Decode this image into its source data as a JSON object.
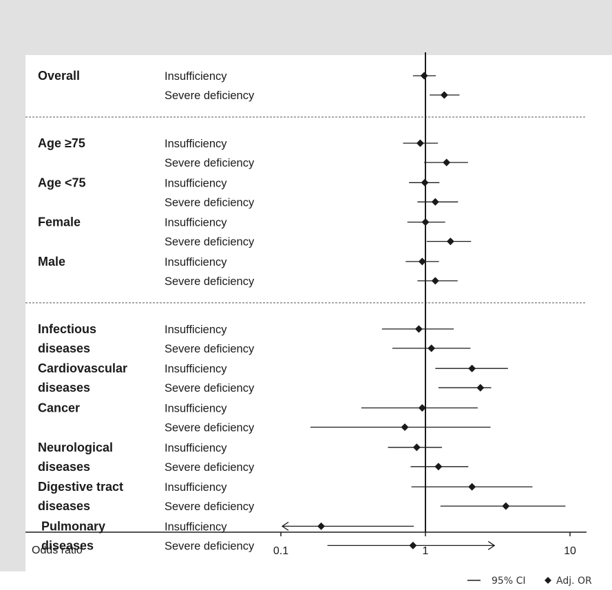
{
  "chart_data": {
    "type": "forest",
    "x_scale": "log",
    "xlim": [
      0.1,
      10
    ],
    "xlabel": "Odds ratio",
    "ticks": [
      {
        "value": 0.1,
        "label": "0.1"
      },
      {
        "value": 1,
        "label": "1"
      },
      {
        "value": 10,
        "label": "10"
      }
    ],
    "reference_line": 1,
    "legend": {
      "ci_label": "95% CI",
      "or_label": "Adj. OR",
      "placement": "bottom-right"
    },
    "groups": [
      {
        "label": "Overall",
        "section": 1,
        "rows": [
          {
            "level": "Insufficiency",
            "or": 0.98,
            "ci": [
              0.82,
              1.18
            ]
          },
          {
            "level": "Severe deficiency",
            "or": 1.35,
            "ci": [
              1.07,
              1.72
            ]
          }
        ]
      },
      {
        "label": "Age ≥75",
        "section": 2,
        "rows": [
          {
            "level": "Insufficiency",
            "or": 0.92,
            "ci": [
              0.7,
              1.22
            ]
          },
          {
            "level": "Severe deficiency",
            "or": 1.4,
            "ci": [
              0.98,
              1.97
            ]
          }
        ]
      },
      {
        "label": "Age <75",
        "section": 2,
        "rows": [
          {
            "level": "Insufficiency",
            "or": 0.99,
            "ci": [
              0.77,
              1.25
            ]
          },
          {
            "level": "Severe deficiency",
            "or": 1.17,
            "ci": [
              0.88,
              1.68
            ]
          }
        ]
      },
      {
        "label": "Female",
        "section": 2,
        "rows": [
          {
            "level": "Insufficiency",
            "or": 1.0,
            "ci": [
              0.75,
              1.37
            ]
          },
          {
            "level": "Severe deficiency",
            "or": 1.49,
            "ci": [
              1.02,
              2.07
            ]
          }
        ]
      },
      {
        "label": "Male",
        "section": 2,
        "rows": [
          {
            "level": "Insufficiency",
            "or": 0.95,
            "ci": [
              0.73,
              1.24
            ]
          },
          {
            "level": "Severe deficiency",
            "or": 1.17,
            "ci": [
              0.88,
              1.67
            ]
          }
        ]
      },
      {
        "label": "Infectious diseases",
        "label_lines": [
          "Infectious",
          "diseases"
        ],
        "section": 3,
        "rows": [
          {
            "level": "Insufficiency",
            "or": 0.9,
            "ci": [
              0.5,
              1.57
            ]
          },
          {
            "level": "Severe deficiency",
            "or": 1.1,
            "ci": [
              0.59,
              2.05
            ]
          }
        ]
      },
      {
        "label": "Cardiovascular diseases",
        "label_lines": [
          "Cardiovascular",
          "diseases"
        ],
        "section": 3,
        "rows": [
          {
            "level": "Insufficiency",
            "or": 2.1,
            "ci": [
              1.17,
              3.72
            ]
          },
          {
            "level": "Severe deficiency",
            "or": 2.4,
            "ci": [
              1.23,
              2.85
            ]
          }
        ]
      },
      {
        "label": "Cancer",
        "label_lines": [
          "Cancer"
        ],
        "section": 3,
        "rows": [
          {
            "level": "Insufficiency",
            "or": 0.95,
            "ci": [
              0.36,
              2.3
            ]
          },
          {
            "level": "Severe deficiency",
            "or": 0.72,
            "ci": [
              0.16,
              2.82
            ]
          }
        ]
      },
      {
        "label": "Neurological diseases",
        "label_lines": [
          "Neurological",
          "diseases"
        ],
        "section": 3,
        "rows": [
          {
            "level": "Insufficiency",
            "or": 0.87,
            "ci": [
              0.55,
              1.3
            ]
          },
          {
            "level": "Severe deficiency",
            "or": 1.23,
            "ci": [
              0.79,
              1.98
            ]
          }
        ]
      },
      {
        "label": "Digestive tract diseases",
        "label_lines": [
          "Digestive tract",
          "diseases"
        ],
        "section": 3,
        "rows": [
          {
            "level": "Insufficiency",
            "or": 2.1,
            "ci": [
              0.8,
              5.5
            ]
          },
          {
            "level": "Severe deficiency",
            "or": 3.6,
            "ci": [
              1.27,
              9.3
            ]
          }
        ]
      },
      {
        "label": "Pulmonary diseases",
        "label_lines": [
          "Pulmonary",
          "diseases"
        ],
        "section": 3,
        "rows": [
          {
            "level": "Insufficiency",
            "or": 0.19,
            "ci": [
              0.09,
              0.83
            ],
            "ci_arrow": "left"
          },
          {
            "level": "Severe deficiency",
            "or": 0.82,
            "ci": [
              0.21,
              3.0
            ],
            "ci_arrow": "right"
          }
        ]
      }
    ]
  }
}
